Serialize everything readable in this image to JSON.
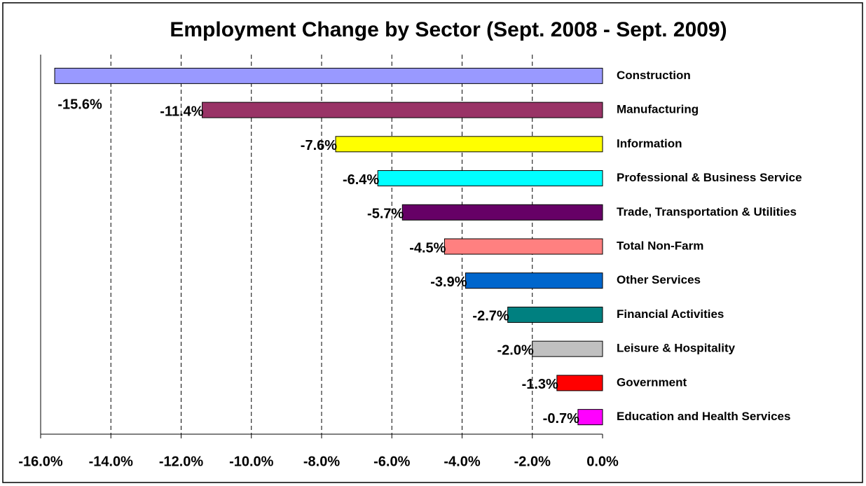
{
  "chart_data": {
    "type": "bar",
    "orientation": "horizontal",
    "title": "Employment Change by Sector (Sept. 2008 - Sept. 2009)",
    "categories": [
      "Construction",
      "Manufacturing",
      "Information",
      "Professional & Business Service",
      "Trade, Transportation & Utilities",
      "Total Non-Farm",
      "Other Services",
      "Financial Activities",
      "Leisure & Hospitality",
      "Government",
      "Education and Health Services"
    ],
    "values": [
      -15.6,
      -11.4,
      -7.6,
      -6.4,
      -5.7,
      -4.5,
      -3.9,
      -2.7,
      -2.0,
      -1.3,
      -0.7
    ],
    "value_labels": [
      "-15.6%",
      "-11.4%",
      "-7.6%",
      "-6.4%",
      "-5.7%",
      "-4.5%",
      "-3.9%",
      "-2.7%",
      "-2.0%",
      "-1.3%",
      "-0.7%"
    ],
    "colors": [
      "#9999ff",
      "#993366",
      "#ffff00",
      "#00ffff",
      "#660066",
      "#ff8080",
      "#0066cc",
      "#008080",
      "#c0c0c0",
      "#ff0000",
      "#ff00ff"
    ],
    "xlim": [
      -16,
      0
    ],
    "xticks": [
      {
        "value": -16,
        "label": "-16.0%"
      },
      {
        "value": -14,
        "label": "-14.0%"
      },
      {
        "value": -12,
        "label": "-12.0%"
      },
      {
        "value": -10,
        "label": "-10.0%"
      },
      {
        "value": -8,
        "label": "-8.0%"
      },
      {
        "value": -6,
        "label": "-6.0%"
      },
      {
        "value": -4,
        "label": "-4.0%"
      },
      {
        "value": -2,
        "label": "-2.0%"
      },
      {
        "value": 0,
        "label": "0.0%"
      }
    ],
    "grid": true
  }
}
